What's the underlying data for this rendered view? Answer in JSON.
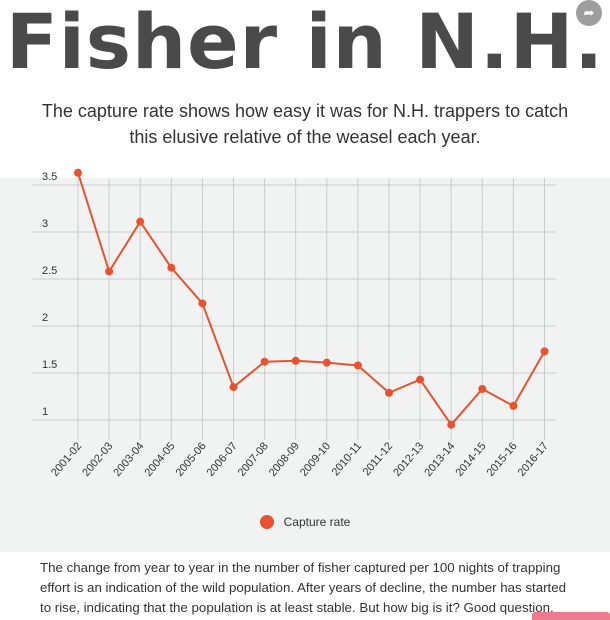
{
  "header": {
    "title": "Fisher in N.H.",
    "subtitle": "The capture rate shows how easy it was for N.H. trappers to catch this elusive relative of the weasel each year."
  },
  "colors": {
    "series": "#e8522f",
    "grid": "#c9cccb",
    "panel": "#f1f3f2",
    "title": "#4a4a4a"
  },
  "chart_data": {
    "type": "line",
    "title": "",
    "xlabel": "",
    "ylabel": "",
    "x": [
      "2001-02",
      "2002-03",
      "2003-04",
      "2004-05",
      "2005-06",
      "2006-07",
      "2007-08",
      "2008-09",
      "2009-10",
      "2010-11",
      "2011-12",
      "2012-13",
      "2013-14",
      "2014-15",
      "2015-16",
      "2016-17"
    ],
    "series": [
      {
        "name": "Capture rate",
        "values": [
          3.63,
          2.58,
          3.11,
          2.62,
          2.24,
          1.35,
          1.62,
          1.63,
          1.61,
          1.58,
          1.29,
          1.43,
          0.95,
          1.33,
          1.15,
          1.73
        ]
      }
    ],
    "yticks": [
      "3.5",
      "3",
      "2.5",
      "2",
      "1.5",
      "1"
    ],
    "ylim": [
      0.9,
      3.75
    ],
    "grid": true,
    "legend": "bottom-center"
  },
  "legend": {
    "label": "Capture rate"
  },
  "footer": {
    "text": "The change from year to year in the number of fisher captured per 100 nights of trapping effort is an indication of the wild population. After years of decline, the number has started to rise, indicating that the population is at least stable. But how big is it? Good question."
  }
}
